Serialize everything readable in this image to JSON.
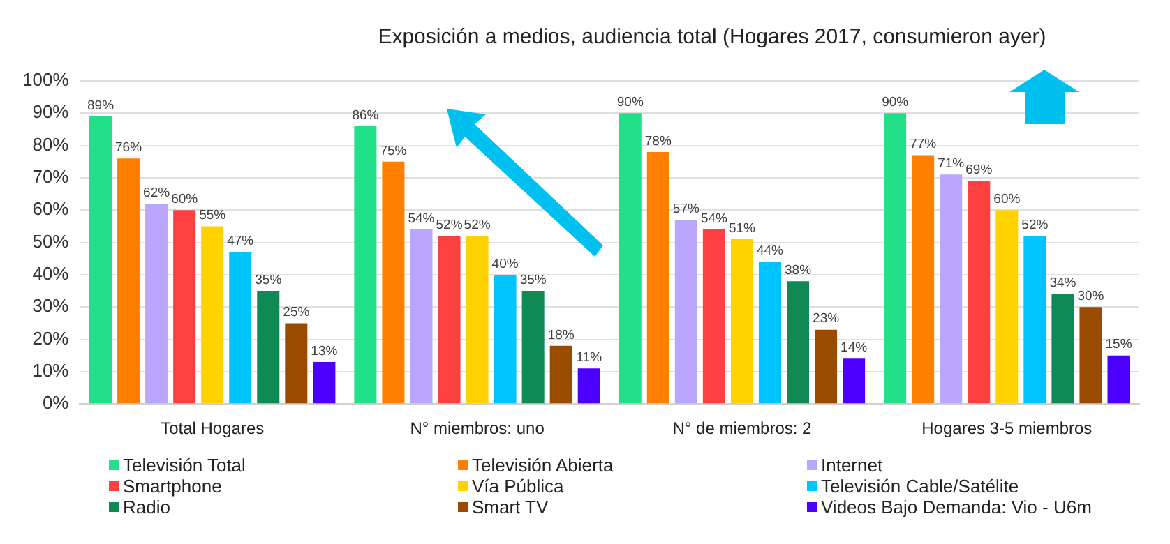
{
  "chart_data": {
    "type": "bar",
    "title": "Exposición a medios, audiencia total (Hogares 2017, consumieron ayer)",
    "categories": [
      "Total Hogares",
      "N° miembros: uno",
      "N° de miembros: 2",
      "Hogares 3-5 miembros"
    ],
    "series": [
      {
        "name": "Televisión Total",
        "color": "#22e08a",
        "values": [
          89,
          86,
          90,
          90
        ],
        "value_labels": [
          "89%",
          "86%",
          "90%",
          "90%"
        ]
      },
      {
        "name": "Televisión Abierta",
        "color": "#ff8000",
        "values": [
          76,
          75,
          78,
          77
        ],
        "value_labels": [
          "76%",
          "75%",
          "78%",
          "77%"
        ]
      },
      {
        "name": "Internet",
        "color": "#bba6ff",
        "values": [
          62,
          54,
          57,
          71
        ],
        "value_labels": [
          "62%",
          "54%",
          "57%",
          "71%"
        ]
      },
      {
        "name": "Smartphone",
        "color": "#ff4040",
        "values": [
          60,
          52,
          54,
          69
        ],
        "value_labels": [
          "60%",
          "52%",
          "54%",
          "69%"
        ]
      },
      {
        "name": "Vía Pública",
        "color": "#ffd200",
        "values": [
          55,
          52,
          51,
          60
        ],
        "value_labels": [
          "55%",
          "52%",
          "51%",
          "60%"
        ]
      },
      {
        "name": "Televisión Cable/Satélite",
        "color": "#00c4ff",
        "values": [
          47,
          40,
          44,
          52
        ],
        "value_labels": [
          "47%",
          "40%",
          "44%",
          "52%"
        ]
      },
      {
        "name": "Radio",
        "color": "#0f8a55",
        "values": [
          35,
          35,
          38,
          34
        ],
        "value_labels": [
          "35%",
          "35%",
          "38%",
          "34%"
        ]
      },
      {
        "name": "Smart TV",
        "color": "#994c00",
        "values": [
          25,
          18,
          23,
          30
        ],
        "value_labels": [
          "25%",
          "18%",
          "23%",
          "30%"
        ]
      },
      {
        "name": "Videos Bajo Demanda:  Vio - U6m",
        "color": "#4b00ff",
        "values": [
          13,
          11,
          14,
          15
        ],
        "value_labels": [
          "13%",
          "11%",
          "14%",
          "15%"
        ]
      }
    ],
    "ylim": [
      0,
      100
    ],
    "yticks": [
      {
        "value": 0,
        "label": "0%"
      },
      {
        "value": 10,
        "label": "10%"
      },
      {
        "value": 20,
        "label": "20%"
      },
      {
        "value": 30,
        "label": "30%"
      },
      {
        "value": 40,
        "label": "40%"
      },
      {
        "value": 50,
        "label": "50%"
      },
      {
        "value": 60,
        "label": "60%"
      },
      {
        "value": 70,
        "label": "70%"
      },
      {
        "value": 80,
        "label": "80%"
      },
      {
        "value": 90,
        "label": "90%"
      },
      {
        "value": 100,
        "label": "100%"
      }
    ],
    "grid": "y",
    "legend": "bottom"
  }
}
